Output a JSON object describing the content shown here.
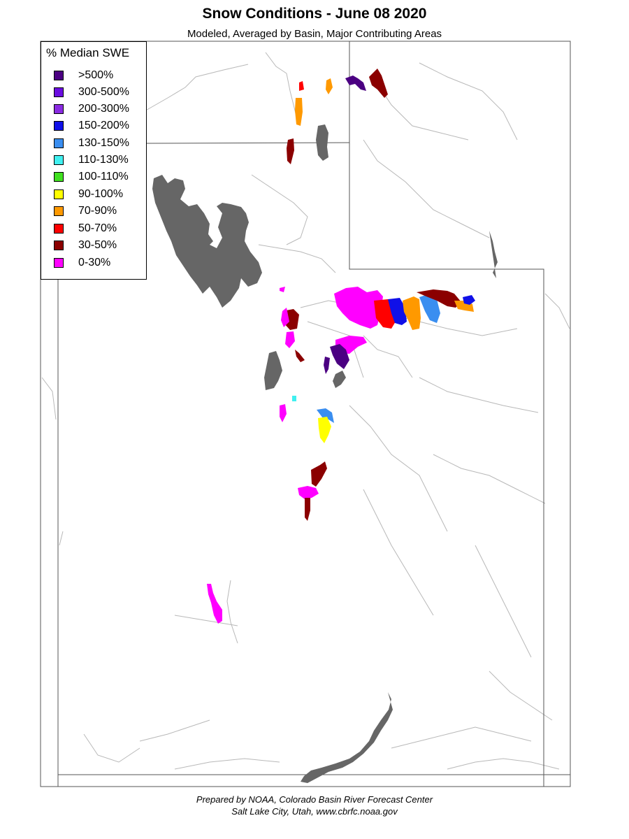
{
  "title": "Snow Conditions - June 08 2020",
  "subtitle": "Modeled, Averaged by Basin, Major Contributing Areas",
  "legend": {
    "title": "% Median SWE",
    "items": [
      {
        "label": ">500%",
        "color": "#4B0082"
      },
      {
        "label": "300-500%",
        "color": "#6A0DE0"
      },
      {
        "label": "200-300%",
        "color": "#8A2BE2"
      },
      {
        "label": "150-200%",
        "color": "#1010E8"
      },
      {
        "label": "130-150%",
        "color": "#3A8EF0"
      },
      {
        "label": "110-130%",
        "color": "#40F0F0"
      },
      {
        "label": "100-110%",
        "color": "#40E020"
      },
      {
        "label": "90-100%",
        "color": "#FFFF00"
      },
      {
        "label": "70-90%",
        "color": "#FF9900"
      },
      {
        "label": "50-70%",
        "color": "#FF0000"
      },
      {
        "label": "30-50%",
        "color": "#8B0000"
      },
      {
        "label": "0-30%",
        "color": "#FF00FF"
      }
    ]
  },
  "colors": {
    "lake": "#666666",
    "border": "#555555",
    "river": "#b8b8b8"
  },
  "footer": {
    "line1": "Prepared by NOAA, Colorado Basin River Forecast Center",
    "line2": "Salt Lake City, Utah, www.cbrfc.noaa.gov"
  }
}
